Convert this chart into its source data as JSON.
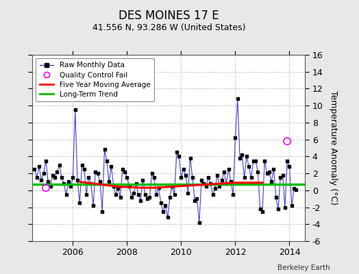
{
  "title": "DES MOINES 17 E",
  "subtitle": "41.556 N, 93.286 W (United States)",
  "ylabel": "Temperature Anomaly (°C)",
  "credit": "Berkeley Earth",
  "ylim": [
    -6,
    16
  ],
  "yticks": [
    -6,
    -4,
    -2,
    0,
    2,
    4,
    6,
    8,
    10,
    12,
    14,
    16
  ],
  "xlim": [
    2004.5,
    2014.58
  ],
  "xticks": [
    2006,
    2008,
    2010,
    2012,
    2014
  ],
  "fig_bg_color": "#e8e8e8",
  "plot_bg_color": "#ffffff",
  "long_term_trend_value": 0.75,
  "raw_data": {
    "times": [
      2004.583,
      2004.667,
      2004.75,
      2004.833,
      2004.917,
      2005.0,
      2005.083,
      2005.167,
      2005.25,
      2005.333,
      2005.417,
      2005.5,
      2005.583,
      2005.667,
      2005.75,
      2005.833,
      2005.917,
      2006.0,
      2006.083,
      2006.167,
      2006.25,
      2006.333,
      2006.417,
      2006.5,
      2006.583,
      2006.667,
      2006.75,
      2006.833,
      2006.917,
      2007.0,
      2007.083,
      2007.167,
      2007.25,
      2007.333,
      2007.417,
      2007.5,
      2007.583,
      2007.667,
      2007.75,
      2007.833,
      2007.917,
      2008.0,
      2008.083,
      2008.167,
      2008.25,
      2008.333,
      2008.417,
      2008.5,
      2008.583,
      2008.667,
      2008.75,
      2008.833,
      2008.917,
      2009.0,
      2009.083,
      2009.167,
      2009.25,
      2009.333,
      2009.417,
      2009.5,
      2009.583,
      2009.667,
      2009.75,
      2009.833,
      2009.917,
      2010.0,
      2010.083,
      2010.167,
      2010.25,
      2010.333,
      2010.417,
      2010.5,
      2010.583,
      2010.667,
      2010.75,
      2010.833,
      2010.917,
      2011.0,
      2011.083,
      2011.167,
      2011.25,
      2011.333,
      2011.417,
      2011.5,
      2011.583,
      2011.667,
      2011.75,
      2011.833,
      2011.917,
      2012.0,
      2012.083,
      2012.167,
      2012.25,
      2012.333,
      2012.417,
      2012.5,
      2012.583,
      2012.667,
      2012.75,
      2012.833,
      2012.917,
      2013.0,
      2013.083,
      2013.167,
      2013.25,
      2013.333,
      2013.417,
      2013.5,
      2013.583,
      2013.667,
      2013.75,
      2013.833,
      2013.917,
      2014.0,
      2014.083,
      2014.167,
      2014.25
    ],
    "values": [
      2.5,
      1.5,
      2.8,
      1.2,
      2.0,
      3.5,
      1.0,
      0.5,
      1.8,
      1.5,
      2.2,
      3.0,
      1.5,
      0.8,
      -0.5,
      1.0,
      0.5,
      1.5,
      9.5,
      1.2,
      -1.5,
      3.0,
      2.5,
      -0.5,
      1.5,
      0.8,
      -1.8,
      2.2,
      2.0,
      1.0,
      -2.5,
      4.8,
      3.5,
      1.0,
      2.8,
      0.5,
      -0.5,
      0.2,
      -0.8,
      2.5,
      2.2,
      1.5,
      0.5,
      -0.8,
      -0.3,
      0.8,
      -0.5,
      -1.2,
      1.2,
      -0.5,
      -1.0,
      -0.8,
      2.0,
      1.5,
      -0.5,
      0.3,
      -1.5,
      -2.5,
      -1.8,
      -3.2,
      -0.8,
      0.5,
      -0.5,
      4.5,
      4.0,
      1.5,
      2.5,
      1.8,
      -0.3,
      3.8,
      1.5,
      -1.2,
      -1.0,
      -3.8,
      1.2,
      0.8,
      0.5,
      1.5,
      0.8,
      -0.5,
      0.2,
      1.8,
      0.5,
      1.2,
      2.2,
      0.8,
      2.5,
      1.0,
      -0.5,
      6.2,
      10.8,
      3.8,
      4.2,
      1.5,
      4.0,
      2.8,
      1.5,
      3.5,
      3.5,
      2.2,
      -2.2,
      -2.5,
      3.5,
      2.0,
      2.2,
      1.0,
      2.5,
      -0.8,
      -2.2,
      1.5,
      1.8,
      -2.0,
      3.5,
      2.8,
      -1.8,
      0.2,
      0.1
    ]
  },
  "qc_fail_points": [
    {
      "time": 2005.0,
      "value": 0.3
    },
    {
      "time": 2013.917,
      "value": 5.8
    }
  ],
  "five_year_ma": {
    "times": [
      2006.25,
      2006.5,
      2006.75,
      2007.0,
      2007.25,
      2007.5,
      2007.75,
      2008.0,
      2008.25,
      2008.5,
      2008.75,
      2009.0,
      2009.25,
      2009.5,
      2009.75,
      2010.0,
      2010.25,
      2010.5,
      2010.75,
      2011.0,
      2011.25,
      2011.5,
      2011.75,
      2012.0,
      2012.25,
      2012.5,
      2012.75,
      2013.0
    ],
    "values": [
      1.0,
      0.9,
      0.8,
      0.7,
      0.6,
      0.5,
      0.4,
      0.4,
      0.35,
      0.3,
      0.3,
      0.3,
      0.35,
      0.4,
      0.45,
      0.5,
      0.55,
      0.6,
      0.65,
      0.7,
      0.75,
      0.8,
      0.85,
      0.9,
      0.9,
      0.9,
      0.9,
      0.9
    ]
  },
  "colors": {
    "raw_line": "#4040cc",
    "raw_marker": "#000000",
    "qc_fail": "#ff00ff",
    "five_year_ma": "#ff0000",
    "long_term_trend": "#00bb00",
    "grid": "#bbbbbb"
  }
}
